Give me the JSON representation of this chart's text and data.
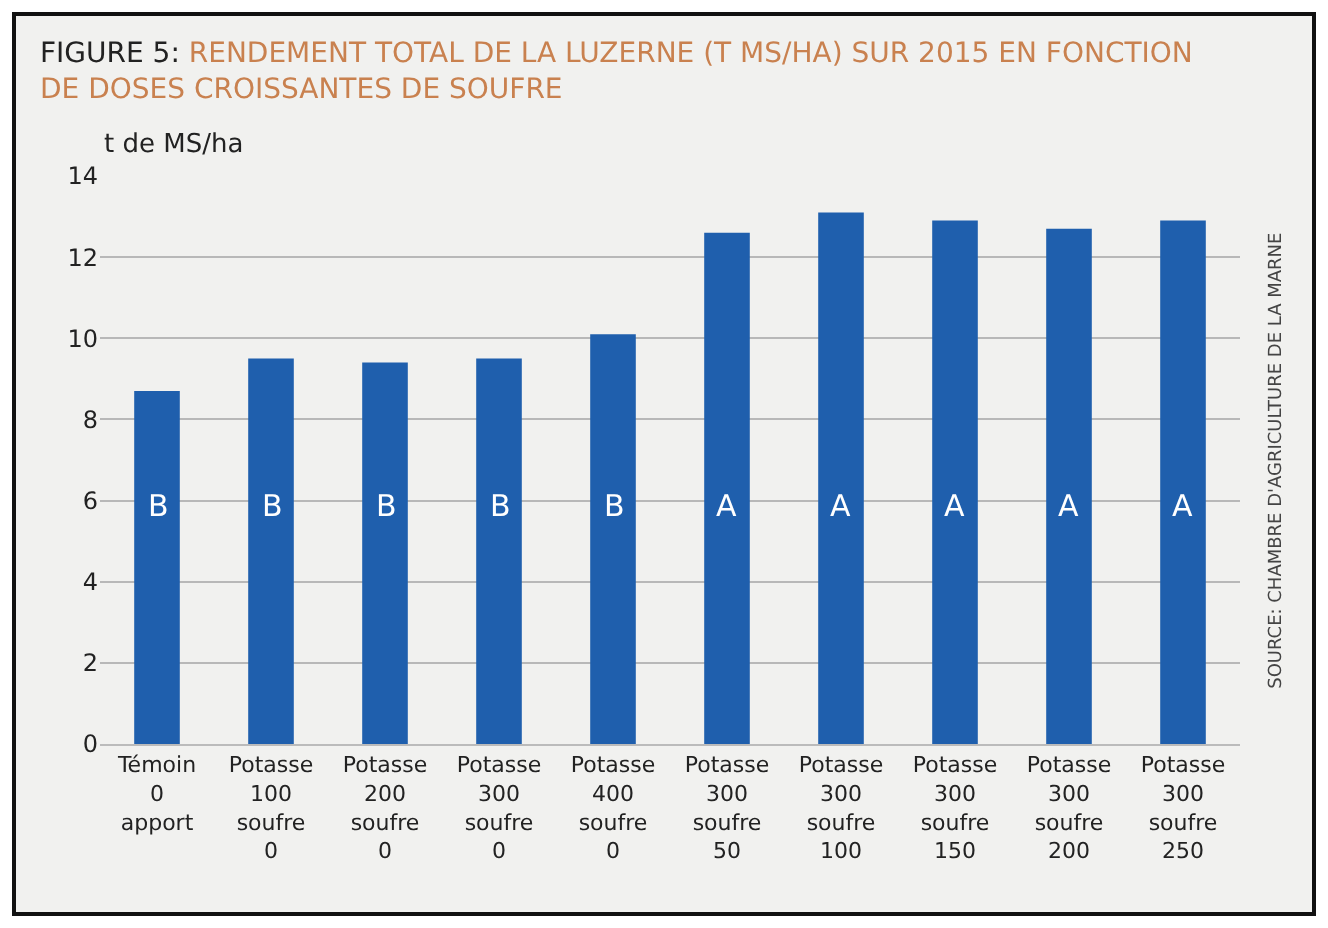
{
  "chart_data": {
    "type": "bar",
    "title": "FIGURE 5: RENDEMENT TOTAL DE LA LUZERNE (T MS/HA) SUR 2015 EN FONCTION DE DOSES CROISSANTES DE SOUFRE",
    "ylabel": "t de MS/ha",
    "categories": [
      "Témoin\n0\napport",
      "Potasse\n100\nsoufre\n0",
      "Potasse\n200\nsoufre\n0",
      "Potasse\n300\nsoufre\n0",
      "Potasse\n400\nsoufre\n0",
      "Potasse\n300\nsoufre\n50",
      "Potasse\n300\nsoufre\n100",
      "Potasse\n300\nsoufre\n150",
      "Potasse\n300\nsoufre\n200",
      "Potasse\n300\nsoufre\n250"
    ],
    "values": [
      8.7,
      9.5,
      9.4,
      9.5,
      10.1,
      12.6,
      13.1,
      12.9,
      12.7,
      12.9
    ],
    "value_labels": [
      "B",
      "B",
      "B",
      "B",
      "B",
      "A",
      "A",
      "A",
      "A",
      "A"
    ],
    "color": "#1f5fad",
    "ylim": [
      0,
      14
    ],
    "yticks": [
      0,
      2,
      4,
      6,
      8,
      10,
      12,
      14
    ],
    "grid": "y",
    "legend": false,
    "annotations": [
      "SOURCE: CHAMBRE D'AGRICULTURE DE LA MARNE"
    ]
  }
}
